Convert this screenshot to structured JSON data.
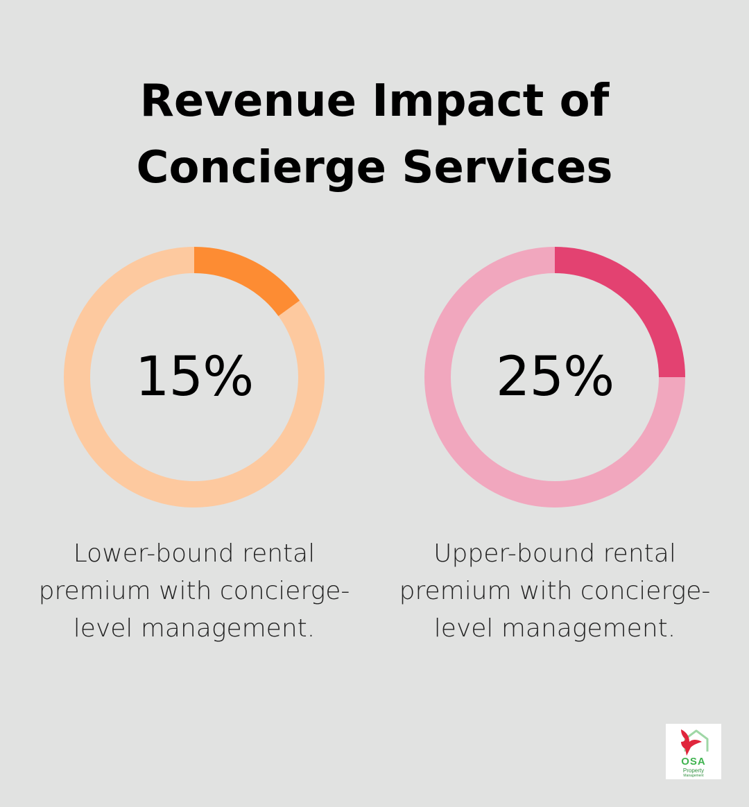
{
  "title_lines": [
    "Revenue Impact of",
    "Concierge Services"
  ],
  "chart_data": [
    {
      "type": "pie",
      "value": 15,
      "label": "15%",
      "caption": "Lower-bound rental premium with concierge-level management.",
      "colors": {
        "filled": "#fd8c33",
        "track": "#fdc99f"
      }
    },
    {
      "type": "pie",
      "value": 25,
      "label": "25%",
      "caption": "Upper-bound rental premium with concierge-level management.",
      "colors": {
        "filled": "#e34271",
        "track": "#f1a7be"
      }
    }
  ],
  "logo": {
    "brand": "OSA",
    "line1": "Property",
    "line2": "Management",
    "colors": {
      "brand": "#3fb34f",
      "bird": "#e0263c"
    }
  }
}
